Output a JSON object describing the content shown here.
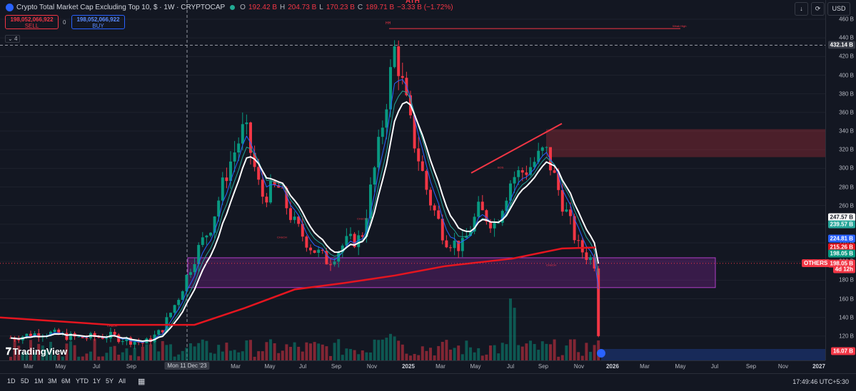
{
  "header": {
    "symbol_title": "Crypto Total Market Cap Excluding Top 10, $ · 1W · CRYPTOCAP",
    "open_label": "O",
    "open_value": "192.42 B",
    "high_label": "H",
    "high_value": "204.73 B",
    "low_label": "L",
    "low_value": "170.23 B",
    "close_label": "C",
    "close_value": "189.71 B",
    "change": "−3.33 B (−1.72%)"
  },
  "trade": {
    "sell_price": "198,052,066,922",
    "sell_label": "SELL",
    "buy_price": "198,052,066,922",
    "buy_label": "BUY",
    "spread": "0"
  },
  "indicator_toggle": "4",
  "toolbar": {
    "currency": "USD",
    "download_icon": "download-icon",
    "snapshot_icon": "snapshot-icon"
  },
  "chart_labels": {
    "ath_label": "ATH",
    "choch": "CHoCH",
    "bos": "BOS",
    "week_high": "Weak High",
    "hh": "HH"
  },
  "price_tags": {
    "crosshair": "432.14 B",
    "ema_a": "247.57 B",
    "ema_b": "239.57 B",
    "ema_c": "224.81 B",
    "ema_200": "215.26 B",
    "green_tag": "198.05 B",
    "others_label": "OTHERS",
    "last_price": "198.05 B",
    "countdown": "4d 12h",
    "volume": "16.07 B"
  },
  "time_axis": {
    "crosshair_label": "Mon 11 Dec '23"
  },
  "bottom_bar": {
    "ranges": [
      "1D",
      "5D",
      "1M",
      "3M",
      "6M",
      "YTD",
      "1Y",
      "5Y",
      "All"
    ],
    "clock": "17:49:46 UTC+5:30"
  },
  "logo_text": "TradingView",
  "colors": {
    "up": "#089981",
    "down": "#f23645",
    "ema_white": "#ffffff",
    "ema_200": "#e5151f",
    "demand_zone": "#9c27b0",
    "supply_zone": "#f23645"
  },
  "chart_data": {
    "type": "candlestick",
    "title": "Crypto Total Market Cap Excluding Top 10, $ · 1W · CRYPTOCAP",
    "y_unit": "B",
    "ylim": [
      100,
      460
    ],
    "y_ticks": [
      120,
      140,
      160,
      180,
      200,
      220,
      240,
      260,
      280,
      300,
      320,
      340,
      360,
      380,
      400,
      420,
      440,
      460
    ],
    "x_ticks": [
      "Mar",
      "May",
      "Jul",
      "Sep",
      "Nov",
      "2025",
      "Mar",
      "May",
      "Jul",
      "Sep",
      "Nov",
      "2026",
      "Mar",
      "May",
      "Jul",
      "Sep",
      "Nov",
      "2027"
    ],
    "x_ticks_2023": [
      "Mar",
      "May",
      "Jul",
      "Sep"
    ],
    "close_path": [
      {
        "date": "2023-01",
        "value": 118
      },
      {
        "date": "2023-03",
        "value": 124
      },
      {
        "date": "2023-05",
        "value": 118
      },
      {
        "date": "2023-07",
        "value": 120
      },
      {
        "date": "2023-09",
        "value": 112
      },
      {
        "date": "2023-10",
        "value": 125
      },
      {
        "date": "2023-11",
        "value": 160
      },
      {
        "date": "2023-12",
        "value": 205
      },
      {
        "date": "2024-01",
        "value": 240
      },
      {
        "date": "2024-02",
        "value": 300
      },
      {
        "date": "2024-03",
        "value": 345
      },
      {
        "date": "2024-04",
        "value": 270
      },
      {
        "date": "2024-05",
        "value": 280
      },
      {
        "date": "2024-06",
        "value": 240
      },
      {
        "date": "2024-07",
        "value": 215
      },
      {
        "date": "2024-08",
        "value": 200
      },
      {
        "date": "2024-09",
        "value": 220
      },
      {
        "date": "2024-10",
        "value": 225
      },
      {
        "date": "2024-11",
        "value": 320
      },
      {
        "date": "2024-12",
        "value": 430
      },
      {
        "date": "2025-01",
        "value": 340
      },
      {
        "date": "2025-02",
        "value": 270
      },
      {
        "date": "2025-03",
        "value": 225
      },
      {
        "date": "2025-04",
        "value": 215
      },
      {
        "date": "2025-05",
        "value": 255
      },
      {
        "date": "2025-06",
        "value": 240
      },
      {
        "date": "2025-07",
        "value": 290
      },
      {
        "date": "2025-08",
        "value": 300
      },
      {
        "date": "2025-09",
        "value": 320
      },
      {
        "date": "2025-10",
        "value": 265
      },
      {
        "date": "2025-11",
        "value": 215
      },
      {
        "date": "2025-12",
        "value": 198
      }
    ],
    "ema_200": [
      {
        "date": "2023-01",
        "value": 140
      },
      {
        "date": "2023-07",
        "value": 132
      },
      {
        "date": "2023-12",
        "value": 132
      },
      {
        "date": "2024-03",
        "value": 150
      },
      {
        "date": "2024-06",
        "value": 170
      },
      {
        "date": "2024-09",
        "value": 177
      },
      {
        "date": "2024-12",
        "value": 185
      },
      {
        "date": "2025-03",
        "value": 195
      },
      {
        "date": "2025-07",
        "value": 203
      },
      {
        "date": "2025-10",
        "value": 214
      },
      {
        "date": "2025-12",
        "value": 215
      }
    ],
    "zones": [
      {
        "name": "demand",
        "from": "2023-11",
        "to": "2026-07",
        "low": 172,
        "high": 204
      },
      {
        "name": "supply",
        "from": "2025-09",
        "to": "2026-11",
        "low": 312,
        "high": 342
      }
    ],
    "ath_level": 450,
    "last_price": 198.05
  }
}
